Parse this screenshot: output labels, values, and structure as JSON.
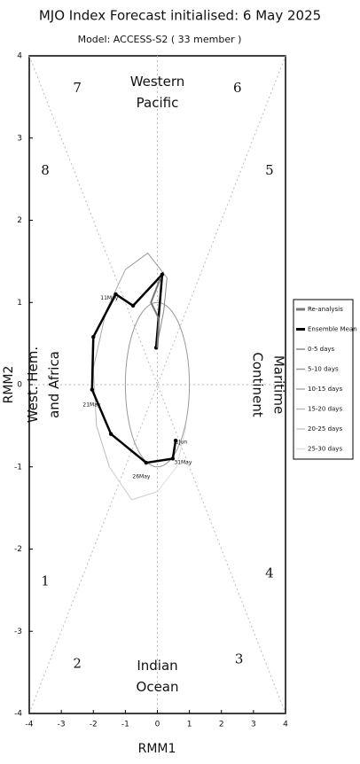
{
  "chart_data": {
    "type": "line",
    "title": "MJO Index Forecast initialised:  6  May 2025",
    "subtitle": "Model: ACCESS-S2 ( 33 member )",
    "x_label": "RMM1",
    "y_label": "RMM2",
    "xlim": [
      -4,
      4
    ],
    "ylim": [
      -4,
      4
    ],
    "xticks": [
      -4,
      -3,
      -2,
      -1,
      0,
      1,
      2,
      3,
      4
    ],
    "yticks": [
      -4,
      -3,
      -2,
      -1,
      0,
      1,
      2,
      3,
      4
    ],
    "phase_labels": [
      "1",
      "2",
      "3",
      "4",
      "5",
      "6",
      "7",
      "8"
    ],
    "regions": [
      [
        "Western",
        "Pacific"
      ],
      [
        "Indian",
        "Ocean"
      ],
      [
        "West. Hem.",
        "and Africa"
      ],
      [
        "Maritime",
        "Continent"
      ]
    ],
    "annotations": [
      "11May",
      "21May",
      "26May",
      "31May",
      "1Jun"
    ],
    "series": [
      {
        "name": "Re-analysis",
        "color": "#777777",
        "x": [
          0.0,
          0.05,
          -0.2,
          0.1
        ],
        "values": [
          0.45,
          0.8,
          1.0,
          1.3
        ]
      },
      {
        "name": "Ensemble Mean",
        "color": "#000000",
        "x": [
          -0.04,
          0.15,
          -0.76,
          -1.3,
          -2.0,
          -2.04,
          -1.45,
          -0.35,
          0.48,
          0.57
        ],
        "values": [
          0.45,
          1.34,
          0.96,
          1.1,
          0.58,
          -0.06,
          -0.6,
          -0.95,
          -0.9,
          -0.68
        ]
      },
      {
        "name": "0-5 days",
        "color": "#888888",
        "x": [
          0.0,
          0.2,
          0.3
        ],
        "values": [
          0.5,
          0.9,
          1.3
        ]
      },
      {
        "name": "5-10 days",
        "color": "#999999",
        "x": [
          0.3,
          -0.3,
          -1.0
        ],
        "values": [
          1.3,
          1.6,
          1.4
        ]
      },
      {
        "name": "10-15 days",
        "color": "#aaaaaa",
        "x": [
          -1.0,
          -1.6,
          -2.0
        ],
        "values": [
          1.4,
          0.9,
          0.2
        ]
      },
      {
        "name": "15-20 days",
        "color": "#bbbbbb",
        "x": [
          -2.0,
          -1.9,
          -1.5
        ],
        "values": [
          0.2,
          -0.5,
          -1.0
        ]
      },
      {
        "name": "20-25 days",
        "color": "#cccccc",
        "x": [
          -1.5,
          -0.8,
          0.0
        ],
        "values": [
          -1.0,
          -1.4,
          -1.3
        ]
      },
      {
        "name": "25-30 days",
        "color": "#dddddd",
        "x": [
          0.0,
          0.6,
          0.9
        ],
        "values": [
          -1.3,
          -1.0,
          -0.5
        ]
      }
    ]
  }
}
